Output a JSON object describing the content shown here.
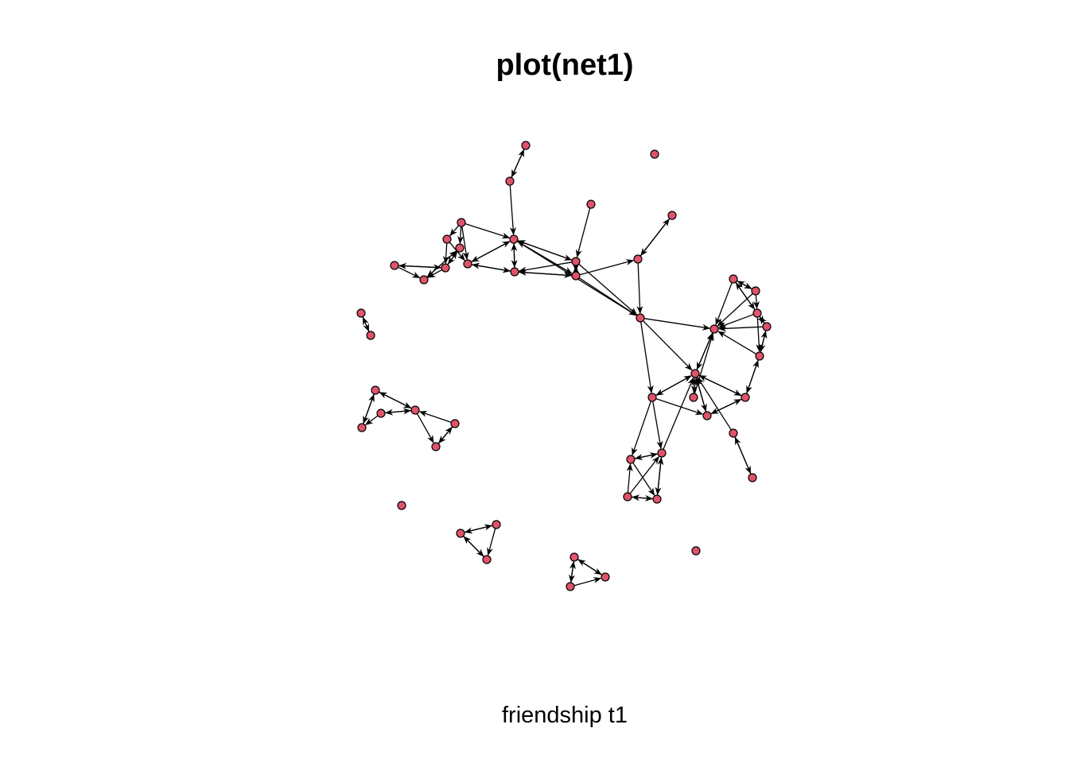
{
  "title": "plot(net1)",
  "subtitle": "friendship t1",
  "colors": {
    "node_fill": "#DF536B",
    "node_stroke": "#000000",
    "edge": "#000000",
    "background": "#FFFFFF"
  },
  "graph": {
    "directed": true,
    "nodes": [
      {
        "id": "n1"
      },
      {
        "id": "n2"
      },
      {
        "id": "n3"
      },
      {
        "id": "n4"
      },
      {
        "id": "n5"
      },
      {
        "id": "n6"
      },
      {
        "id": "n7"
      },
      {
        "id": "n8"
      },
      {
        "id": "n9"
      },
      {
        "id": "n10"
      },
      {
        "id": "n11"
      },
      {
        "id": "n12"
      },
      {
        "id": "n13"
      },
      {
        "id": "n14"
      },
      {
        "id": "n15"
      },
      {
        "id": "n16"
      },
      {
        "id": "n17"
      },
      {
        "id": "n18"
      },
      {
        "id": "n19"
      },
      {
        "id": "n20"
      },
      {
        "id": "n21"
      },
      {
        "id": "n22"
      },
      {
        "id": "n23"
      },
      {
        "id": "n24"
      },
      {
        "id": "n25"
      },
      {
        "id": "n26"
      },
      {
        "id": "n27"
      },
      {
        "id": "n28"
      },
      {
        "id": "n29"
      },
      {
        "id": "n30"
      },
      {
        "id": "n31"
      },
      {
        "id": "n32"
      },
      {
        "id": "n33"
      },
      {
        "id": "n34"
      },
      {
        "id": "n35"
      },
      {
        "id": "n36"
      },
      {
        "id": "n37"
      },
      {
        "id": "n38"
      },
      {
        "id": "n39"
      },
      {
        "id": "n40"
      },
      {
        "id": "n41"
      },
      {
        "id": "n42"
      },
      {
        "id": "n43"
      },
      {
        "id": "n44"
      },
      {
        "id": "n45"
      },
      {
        "id": "n46"
      },
      {
        "id": "n47"
      },
      {
        "id": "n48"
      },
      {
        "id": "n49"
      },
      {
        "id": "n50"
      }
    ],
    "edges": [
      [
        "n2",
        "n1"
      ],
      [
        "n1",
        "n2"
      ],
      [
        "n2",
        "n3"
      ],
      [
        "n4",
        "n10"
      ],
      [
        "n3",
        "n10"
      ],
      [
        "n10",
        "n3"
      ],
      [
        "n5",
        "n3"
      ],
      [
        "n5",
        "n9"
      ],
      [
        "n6",
        "n9"
      ],
      [
        "n6",
        "n12"
      ],
      [
        "n7",
        "n12"
      ],
      [
        "n7",
        "n13"
      ],
      [
        "n12",
        "n7"
      ],
      [
        "n13",
        "n7"
      ],
      [
        "n12",
        "n13"
      ],
      [
        "n8",
        "n12"
      ],
      [
        "n8",
        "n14"
      ],
      [
        "n9",
        "n3"
      ],
      [
        "n3",
        "n9"
      ],
      [
        "n9",
        "n14"
      ],
      [
        "n14",
        "n9"
      ],
      [
        "n3",
        "n11"
      ],
      [
        "n11",
        "n3"
      ],
      [
        "n3",
        "n10"
      ],
      [
        "n4",
        "n9"
      ],
      [
        "n9",
        "n11"
      ],
      [
        "n11",
        "n9"
      ],
      [
        "n9",
        "n8"
      ],
      [
        "n12",
        "n11"
      ],
      [
        "n14",
        "n3"
      ],
      [
        "n12",
        "n3"
      ],
      [
        "n13",
        "n3"
      ],
      [
        "n15",
        "n16"
      ],
      [
        "n16",
        "n15"
      ],
      [
        "n17",
        "n20"
      ],
      [
        "n20",
        "n17"
      ],
      [
        "n17",
        "n21"
      ],
      [
        "n21",
        "n17"
      ],
      [
        "n18",
        "n20"
      ],
      [
        "n20",
        "n18"
      ],
      [
        "n18",
        "n21"
      ],
      [
        "n21",
        "n18"
      ],
      [
        "n21",
        "n20"
      ],
      [
        "n19",
        "n20"
      ],
      [
        "n20",
        "n19"
      ],
      [
        "n19",
        "n22"
      ],
      [
        "n22",
        "n19"
      ],
      [
        "n3",
        "n10"
      ]
    ]
  }
}
